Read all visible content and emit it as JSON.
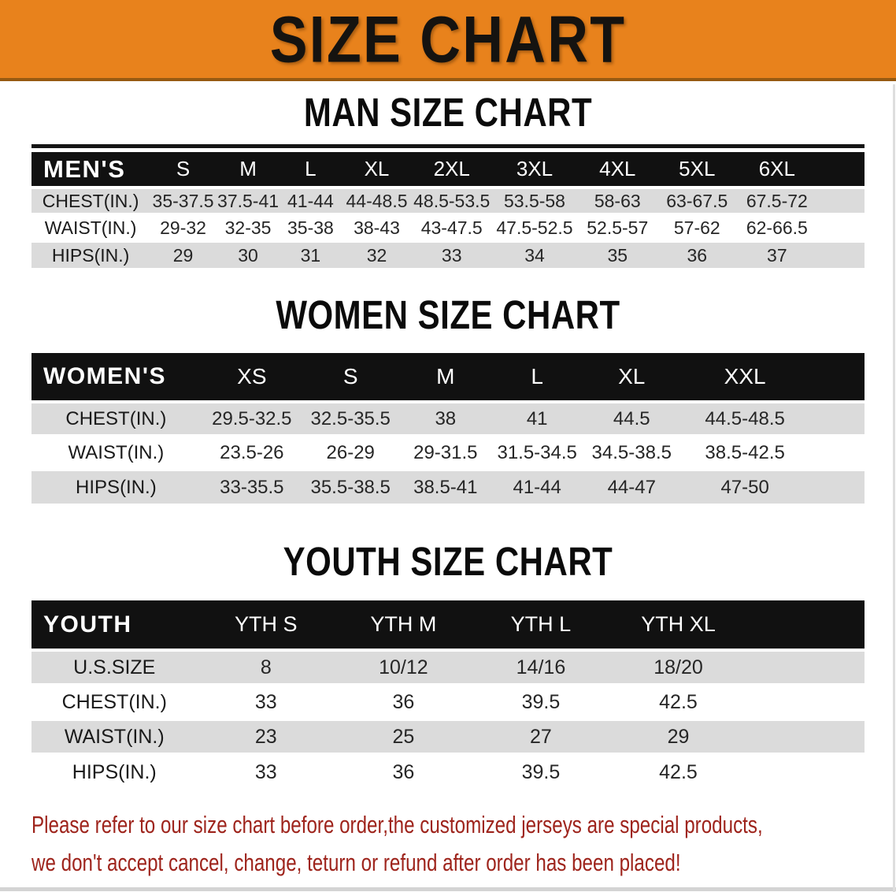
{
  "banner": {
    "title": "SIZE CHART"
  },
  "sections": [
    {
      "heading": "MAN SIZE CHART"
    },
    {
      "heading": "WOMEN SIZE CHART"
    },
    {
      "heading": "YOUTH SIZE CHART"
    }
  ],
  "tables": [
    {
      "name": "mens",
      "header": [
        "MEN'S",
        "S",
        "M",
        "L",
        "XL",
        "2XL",
        "3XL",
        "4XL",
        "5XL",
        "6XL"
      ],
      "rows": [
        {
          "label": "CHEST(IN.)",
          "values": [
            "35-37.5",
            "37.5-41",
            "41-44",
            "44-48.5",
            "48.5-53.5",
            "53.5-58",
            "58-63",
            "63-67.5",
            "67.5-72"
          ]
        },
        {
          "label": "WAIST(IN.)",
          "values": [
            "29-32",
            "32-35",
            "35-38",
            "38-43",
            "43-47.5",
            "47.5-52.5",
            "52.5-57",
            "57-62",
            "62-66.5"
          ]
        },
        {
          "label": "HIPS(IN.)",
          "values": [
            "29",
            "30",
            "31",
            "32",
            "33",
            "34",
            "35",
            "36",
            "37"
          ]
        }
      ]
    },
    {
      "name": "womens",
      "header": [
        "WOMEN'S",
        "XS",
        "S",
        "M",
        "L",
        "XL",
        "XXL"
      ],
      "rows": [
        {
          "label": "CHEST(IN.)",
          "values": [
            "29.5-32.5",
            "32.5-35.5",
            "38",
            "41",
            "44.5",
            "44.5-48.5"
          ]
        },
        {
          "label": "WAIST(IN.)",
          "values": [
            "23.5-26",
            "26-29",
            "29-31.5",
            "31.5-34.5",
            "34.5-38.5",
            "38.5-42.5"
          ]
        },
        {
          "label": "HIPS(IN.)",
          "values": [
            "33-35.5",
            "35.5-38.5",
            "38.5-41",
            "41-44",
            "44-47",
            "47-50"
          ]
        }
      ]
    },
    {
      "name": "youth",
      "header": [
        "YOUTH",
        "YTH S",
        "YTH M",
        "YTH L",
        "YTH XL"
      ],
      "rows": [
        {
          "label": "U.S.SIZE",
          "values": [
            "8",
            "10/12",
            "14/16",
            "18/20"
          ]
        },
        {
          "label": "CHEST(IN.)",
          "values": [
            "33",
            "36",
            "39.5",
            "42.5"
          ]
        },
        {
          "label": "WAIST(IN.)",
          "values": [
            "23",
            "25",
            "27",
            "29"
          ]
        },
        {
          "label": "HIPS(IN.)",
          "values": [
            "33",
            "36",
            "39.5",
            "42.5"
          ]
        }
      ]
    }
  ],
  "disclaimer": {
    "line1": "Please refer to our size chart before order,the customized jerseys are special products,",
    "line2": "we don't accept cancel, change, teturn or refund after order has been placed!"
  },
  "colors": {
    "banner_orange": "#E8821C",
    "band_black": "#111111",
    "stripe_gray": "#DBDBDB",
    "disclaimer_red": "#9E241C"
  }
}
